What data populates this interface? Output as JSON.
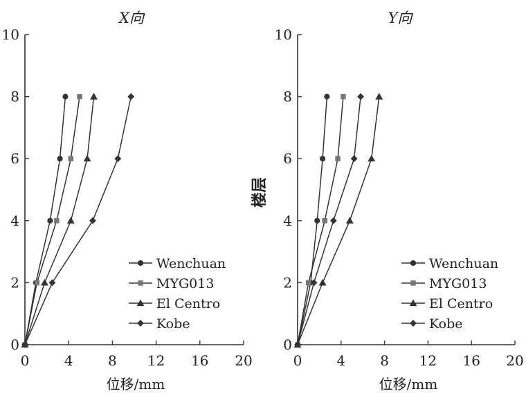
{
  "chart_data": [
    {
      "type": "line",
      "title": "X向",
      "xlabel": "位移/mm",
      "ylabel": "",
      "xlim": [
        0,
        20
      ],
      "ylim": [
        0,
        10
      ],
      "xticks": [
        "0",
        "4",
        "8",
        "12",
        "16",
        "20"
      ],
      "yticks": [
        "0",
        "2",
        "4",
        "6",
        "8",
        "10"
      ],
      "grid": false,
      "legend_position": "lower-right",
      "series": [
        {
          "name": "Wenchuan",
          "marker": "circle",
          "x": [
            0,
            1.0,
            2.3,
            3.2,
            3.7
          ],
          "y": [
            0,
            2,
            4,
            6,
            8
          ]
        },
        {
          "name": "MYG013",
          "marker": "square",
          "x": [
            0,
            1.1,
            2.9,
            4.2,
            5.0
          ],
          "y": [
            0,
            2,
            4,
            6,
            8
          ]
        },
        {
          "name": "El Centro",
          "marker": "triangle",
          "x": [
            0,
            1.8,
            4.2,
            5.7,
            6.3
          ],
          "y": [
            0,
            2,
            4,
            6,
            8
          ]
        },
        {
          "name": "Kobe",
          "marker": "diamond",
          "x": [
            0,
            2.5,
            6.2,
            8.5,
            9.7
          ],
          "y": [
            0,
            2,
            4,
            6,
            8
          ]
        }
      ]
    },
    {
      "type": "line",
      "title": "Y向",
      "xlabel": "位移/mm",
      "ylabel": "楼层",
      "xlim": [
        0,
        20
      ],
      "ylim": [
        0,
        10
      ],
      "xticks": [
        "0",
        "4",
        "8",
        "12",
        "16",
        "20"
      ],
      "yticks": [
        "0",
        "2",
        "4",
        "6",
        "8",
        "10"
      ],
      "grid": false,
      "legend_position": "lower-right",
      "series": [
        {
          "name": "Wenchuan",
          "marker": "circle",
          "x": [
            0,
            1.2,
            1.8,
            2.3,
            2.7
          ],
          "y": [
            0,
            2,
            4,
            6,
            8
          ]
        },
        {
          "name": "MYG013",
          "marker": "square",
          "x": [
            0,
            1.0,
            2.5,
            3.7,
            4.2
          ],
          "y": [
            0,
            2,
            4,
            6,
            8
          ]
        },
        {
          "name": "El Centro",
          "marker": "triangle",
          "x": [
            0,
            2.3,
            4.8,
            6.8,
            7.5
          ],
          "y": [
            0,
            2,
            4,
            6,
            8
          ]
        },
        {
          "name": "Kobe",
          "marker": "diamond",
          "x": [
            0,
            1.5,
            3.3,
            5.2,
            5.8
          ],
          "y": [
            0,
            2,
            4,
            6,
            8
          ]
        }
      ]
    }
  ]
}
